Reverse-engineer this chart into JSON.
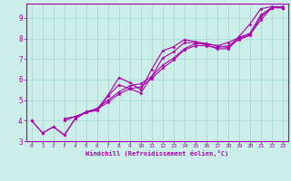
{
  "bg_color": "#cceee8",
  "grid_color": "#aadddd",
  "line_color": "#aa00aa",
  "marker_color": "#aa00aa",
  "xlabel": "Windchill (Refroidissement éolien,°C)",
  "xlim": [
    -0.5,
    23.5
  ],
  "ylim": [
    3.0,
    9.7
  ],
  "yticks": [
    3,
    4,
    5,
    6,
    7,
    8,
    9
  ],
  "xticks": [
    0,
    1,
    2,
    3,
    4,
    5,
    6,
    7,
    8,
    9,
    10,
    11,
    12,
    13,
    14,
    15,
    16,
    17,
    18,
    19,
    20,
    21,
    22,
    23
  ],
  "series": [
    {
      "x": [
        0,
        1,
        2,
        3,
        4,
        5,
        6,
        7,
        8,
        9,
        10,
        11,
        12,
        13,
        14,
        15,
        16,
        17,
        18,
        19,
        20,
        21,
        22,
        23
      ],
      "y": [
        4.0,
        3.4,
        3.7,
        3.3,
        4.1,
        4.45,
        4.55,
        5.25,
        6.1,
        5.85,
        5.5,
        6.5,
        7.4,
        7.6,
        7.95,
        7.85,
        7.75,
        7.65,
        7.55,
        8.1,
        8.7,
        9.45,
        9.55,
        9.55
      ]
    },
    {
      "x": [
        0,
        1,
        2,
        3,
        4,
        5,
        6,
        7,
        8,
        9,
        10,
        11,
        12,
        13,
        14,
        15,
        16,
        17,
        18,
        19,
        20,
        21,
        22,
        23
      ],
      "y": [
        4.0,
        3.4,
        3.7,
        3.3,
        4.1,
        4.4,
        4.5,
        5.2,
        5.75,
        5.55,
        5.35,
        6.15,
        7.05,
        7.35,
        7.8,
        7.8,
        7.7,
        7.5,
        7.5,
        8.0,
        8.2,
        8.9,
        9.5,
        9.5
      ]
    },
    {
      "x": [
        3,
        4,
        5,
        6,
        7,
        8,
        9,
        10,
        11,
        12,
        13,
        14,
        15,
        16,
        17,
        18,
        19,
        20,
        21,
        22,
        23
      ],
      "y": [
        4.1,
        4.2,
        4.4,
        4.6,
        5.0,
        5.4,
        5.7,
        5.8,
        6.15,
        6.7,
        7.05,
        7.5,
        7.75,
        7.75,
        7.65,
        7.8,
        8.05,
        8.25,
        9.15,
        9.5,
        9.5
      ]
    },
    {
      "x": [
        3,
        4,
        5,
        6,
        7,
        8,
        9,
        10,
        11,
        12,
        13,
        14,
        15,
        16,
        17,
        18,
        19,
        20,
        21,
        22,
        23
      ],
      "y": [
        4.0,
        4.2,
        4.4,
        4.55,
        4.9,
        5.3,
        5.55,
        5.65,
        6.05,
        6.55,
        6.95,
        7.45,
        7.65,
        7.65,
        7.55,
        7.65,
        7.95,
        8.15,
        9.05,
        9.5,
        9.5
      ]
    }
  ]
}
